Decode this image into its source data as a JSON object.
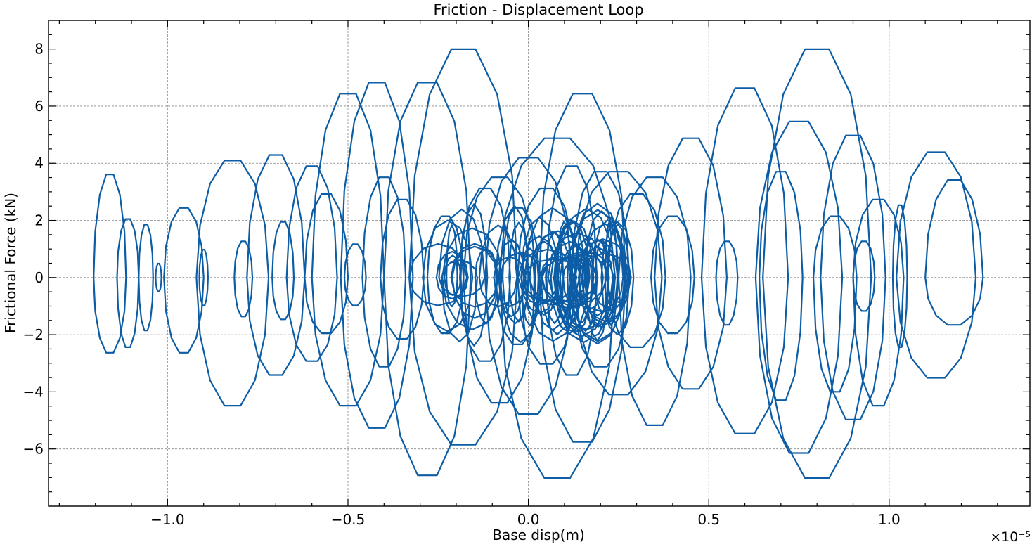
{
  "chart_data": {
    "type": "line",
    "title": "Friction - Displacement Loop",
    "xlabel": "Base disp(m)",
    "ylabel": "Frictional Force (kN)",
    "x_offset_label": "×10⁻⁵",
    "xlim": [
      -1.33,
      1.39
    ],
    "ylim": [
      -8.0,
      9.0
    ],
    "x_major_ticks": [
      -1.0,
      -0.5,
      0.0,
      0.5,
      1.0
    ],
    "x_tick_labels": [
      "−1.0",
      "−0.5",
      "0.0",
      "0.5",
      "1.0"
    ],
    "y_major_ticks": [
      -6,
      -4,
      -2,
      0,
      2,
      4,
      6,
      8
    ],
    "y_tick_labels": [
      "−6",
      "−4",
      "−2",
      "0",
      "2",
      "4",
      "6",
      "8"
    ],
    "grid": true,
    "line_color": "#0c5da5",
    "series": [
      {
        "loops": [
          {
            "cx": -1.16,
            "rx": 0.045,
            "ry_top": 3.7,
            "ry_bot": 2.7
          },
          {
            "cx": -1.11,
            "rx": 0.03,
            "ry_top": 2.1,
            "ry_bot": 2.5
          },
          {
            "cx": -1.06,
            "rx": 0.02,
            "ry_top": 1.9,
            "ry_bot": 1.9
          },
          {
            "cx": -1.025,
            "rx": 0.008,
            "ry_top": 0.5,
            "ry_bot": 0.5
          },
          {
            "cx": -0.955,
            "rx": 0.055,
            "ry_top": 2.5,
            "ry_bot": 2.7
          },
          {
            "cx": -0.9,
            "rx": 0.012,
            "ry_top": 1.0,
            "ry_bot": 1.0
          },
          {
            "cx": -0.82,
            "rx": 0.1,
            "ry_top": 4.2,
            "ry_bot": 4.6
          },
          {
            "cx": -0.79,
            "rx": 0.025,
            "ry_top": 1.3,
            "ry_bot": 1.4
          },
          {
            "cx": -0.7,
            "rx": 0.08,
            "ry_top": 4.4,
            "ry_bot": 3.5
          },
          {
            "cx": -0.68,
            "rx": 0.03,
            "ry_top": 2.0,
            "ry_bot": 1.5
          },
          {
            "cx": -0.6,
            "rx": 0.07,
            "ry_top": 4.0,
            "ry_bot": 3.0
          },
          {
            "cx": -0.56,
            "rx": 0.06,
            "ry_top": 3.0,
            "ry_bot": 2.0
          },
          {
            "cx": -0.5,
            "rx": 0.1,
            "ry_top": 6.6,
            "ry_bot": 4.6
          },
          {
            "cx": -0.48,
            "rx": 0.03,
            "ry_top": 1.2,
            "ry_bot": 1.0
          },
          {
            "cx": -0.42,
            "rx": 0.1,
            "ry_top": 7.0,
            "ry_bot": 5.4
          },
          {
            "cx": -0.4,
            "rx": 0.06,
            "ry_top": 3.6,
            "ry_bot": 3.2
          },
          {
            "cx": -0.35,
            "rx": 0.06,
            "ry_top": 2.8,
            "ry_bot": 2.2
          },
          {
            "cx": -0.28,
            "rx": 0.12,
            "ry_top": 7.0,
            "ry_bot": 7.1
          },
          {
            "cx": -0.23,
            "rx": 0.05,
            "ry_top": 2.2,
            "ry_bot": 2.0
          },
          {
            "cx": -0.18,
            "rx": 0.15,
            "ry_top": 8.2,
            "ry_bot": 6.0
          },
          {
            "cx": -0.12,
            "rx": 0.07,
            "ry_top": 3.2,
            "ry_bot": 3.0
          },
          {
            "cx": -0.08,
            "rx": 0.1,
            "ry_top": 3.6,
            "ry_bot": 4.5
          },
          {
            "cx": -0.03,
            "rx": 0.06,
            "ry_top": 2.5,
            "ry_bot": 2.4
          },
          {
            "cx": 0.0,
            "rx": 0.12,
            "ry_top": 4.3,
            "ry_bot": 4.9
          },
          {
            "cx": 0.05,
            "rx": 0.08,
            "ry_top": 3.2,
            "ry_bot": 3.1
          },
          {
            "cx": 0.08,
            "rx": 0.16,
            "ry_top": 5.0,
            "ry_bot": 7.2
          },
          {
            "cx": 0.12,
            "rx": 0.07,
            "ry_top": 4.0,
            "ry_bot": 3.5
          },
          {
            "cx": 0.15,
            "rx": 0.12,
            "ry_top": 6.6,
            "ry_bot": 5.9
          },
          {
            "cx": 0.2,
            "rx": 0.08,
            "ry_top": 3.8,
            "ry_bot": 3.2
          },
          {
            "cx": 0.25,
            "rx": 0.12,
            "ry_top": 3.8,
            "ry_bot": 4.2
          },
          {
            "cx": 0.3,
            "rx": 0.08,
            "ry_top": 3.0,
            "ry_bot": 2.5
          },
          {
            "cx": 0.35,
            "rx": 0.1,
            "ry_top": 3.6,
            "ry_bot": 5.3
          },
          {
            "cx": 0.4,
            "rx": 0.06,
            "ry_top": 2.2,
            "ry_bot": 2.0
          },
          {
            "cx": 0.45,
            "rx": 0.1,
            "ry_top": 5.0,
            "ry_bot": 4.0
          },
          {
            "cx": 0.55,
            "rx": 0.03,
            "ry_top": 1.3,
            "ry_bot": 1.7
          },
          {
            "cx": 0.6,
            "rx": 0.12,
            "ry_top": 6.8,
            "ry_bot": 5.6
          },
          {
            "cx": 0.7,
            "rx": 0.06,
            "ry_top": 3.8,
            "ry_bot": 4.4
          },
          {
            "cx": 0.75,
            "rx": 0.12,
            "ry_top": 5.6,
            "ry_bot": 6.3
          },
          {
            "cx": 0.8,
            "rx": 0.15,
            "ry_top": 8.2,
            "ry_bot": 7.2
          },
          {
            "cx": 0.85,
            "rx": 0.06,
            "ry_top": 2.2,
            "ry_bot": 4.1
          },
          {
            "cx": 0.9,
            "rx": 0.09,
            "ry_top": 5.1,
            "ry_bot": 5.1
          },
          {
            "cx": 0.93,
            "rx": 0.03,
            "ry_top": 1.3,
            "ry_bot": 1.2
          },
          {
            "cx": 0.97,
            "rx": 0.07,
            "ry_top": 2.8,
            "ry_bot": 4.6
          },
          {
            "cx": 1.03,
            "rx": 0.02,
            "ry_top": 2.6,
            "ry_bot": 2.5
          },
          {
            "cx": 1.13,
            "rx": 0.11,
            "ry_top": 4.5,
            "ry_bot": 3.6
          },
          {
            "cx": 1.18,
            "rx": 0.08,
            "ry_top": 3.5,
            "ry_bot": 1.7
          }
        ],
        "dense_core": {
          "x_range": [
            -0.25,
            0.25
          ],
          "y_range": [
            -2.2,
            2.6
          ]
        }
      }
    ]
  }
}
